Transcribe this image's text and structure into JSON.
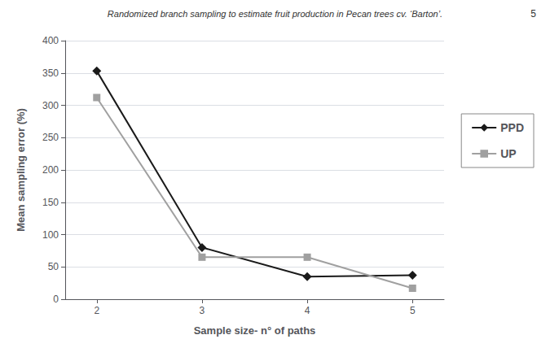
{
  "chart_data": {
    "type": "line",
    "title": "Randomized branch sampling to estimate fruit production in Pecan trees cv. ‘Barton’.",
    "annotations": [
      "5"
    ],
    "x": [
      2,
      3,
      4,
      5
    ],
    "series": [
      {
        "name": "PPD",
        "color": "#1a1a1a",
        "marker": "diamond",
        "values": [
          353,
          80,
          35,
          37
        ]
      },
      {
        "name": "UP",
        "color": "#a0a0a0",
        "marker": "square",
        "values": [
          312,
          65,
          65,
          17
        ]
      }
    ],
    "xlabel": "Sample size- n° of paths",
    "ylabel": "Mean sampling error (%)",
    "xlim": [
      1.7,
      5.3
    ],
    "xticks": [
      2,
      3,
      4,
      5
    ],
    "ylim": [
      0,
      400
    ],
    "yticks": [
      0,
      50,
      100,
      150,
      200,
      250,
      300,
      350,
      400
    ],
    "grid": true,
    "legend": "right"
  }
}
